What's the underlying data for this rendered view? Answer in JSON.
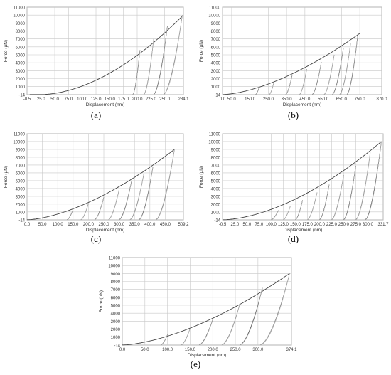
{
  "chart_data": [
    {
      "type": "line",
      "id": "a",
      "label": "(a)",
      "xlabel": "Displacement (nm)",
      "ylabel": "Force (µN)",
      "xlim": [
        -0.5,
        284.1
      ],
      "ylim": [
        -14,
        11000
      ],
      "xticks": [
        "-0.5",
        "25.0",
        "50.0",
        "75.0",
        "100.0",
        "125.0",
        "150.0",
        "175.0",
        "200.0",
        "225.0",
        "250.0",
        "284.1"
      ],
      "yticks": [
        "-14",
        "1000",
        "2000",
        "3000",
        "4000",
        "5000",
        "6000",
        "7000",
        "8000",
        "9000",
        "10000",
        "11000"
      ],
      "grid": true,
      "loading": {
        "name": "loading",
        "x0": 25,
        "xmax": 284,
        "fmax": 10000,
        "exponent": 1.8
      },
      "cycles": [
        {
          "peak_displacement": 205,
          "peak_force": 5600,
          "final_displacement": 192
        },
        {
          "peak_displacement": 230,
          "peak_force": 7000,
          "final_displacement": 212
        },
        {
          "peak_displacement": 255,
          "peak_force": 8600,
          "final_displacement": 230
        },
        {
          "peak_displacement": 282,
          "peak_force": 9950,
          "final_displacement": 248
        }
      ]
    },
    {
      "type": "line",
      "id": "b",
      "label": "(b)",
      "xlabel": "Displacement (nm)",
      "ylabel": "Force (µN)",
      "xlim": [
        0,
        870
      ],
      "ylim": [
        -14,
        11000
      ],
      "xticks": [
        "0.0",
        "50.0",
        "150.0",
        "250.0",
        "350.0",
        "450.0",
        "550.0",
        "650.0",
        "750.0",
        "870.0"
      ],
      "yticks": [
        "-14",
        "1000",
        "2000",
        "3000",
        "4000",
        "5000",
        "6000",
        "7000",
        "8000",
        "9000",
        "10000",
        "11000"
      ],
      "grid": true,
      "loading": {
        "name": "loading",
        "x0": 0,
        "xmax": 750,
        "fmax": 7700,
        "exponent": 1.6
      },
      "cycles": [
        {
          "peak_displacement": 200,
          "peak_force": 900,
          "final_displacement": 180
        },
        {
          "peak_displacement": 280,
          "peak_force": 1500,
          "final_displacement": 255
        },
        {
          "peak_displacement": 380,
          "peak_force": 2400,
          "final_displacement": 345
        },
        {
          "peak_displacement": 460,
          "peak_force": 3200,
          "final_displacement": 420
        },
        {
          "peak_displacement": 540,
          "peak_force": 4100,
          "final_displacement": 490
        },
        {
          "peak_displacement": 610,
          "peak_force": 5000,
          "final_displacement": 555
        },
        {
          "peak_displacement": 660,
          "peak_force": 5800,
          "final_displacement": 600
        },
        {
          "peak_displacement": 700,
          "peak_force": 6500,
          "final_displacement": 640
        },
        {
          "peak_displacement": 740,
          "peak_force": 7700,
          "final_displacement": 680
        }
      ]
    },
    {
      "type": "line",
      "id": "c",
      "label": "(c)",
      "xlabel": "Displacement (nm)",
      "ylabel": "Force (µN)",
      "xlim": [
        0,
        509.2
      ],
      "ylim": [
        -14,
        11000
      ],
      "xticks": [
        "0.0",
        "50.0",
        "100.0",
        "150.0",
        "200.0",
        "250.0",
        "300.0",
        "350.0",
        "400.0",
        "450.0",
        "509.2"
      ],
      "yticks": [
        "-14",
        "1000",
        "2000",
        "3000",
        "4000",
        "5000",
        "6000",
        "7000",
        "8000",
        "9000",
        "10000",
        "11000"
      ],
      "grid": true,
      "loading": {
        "name": "loading",
        "x0": 0,
        "xmax": 480,
        "fmax": 9000,
        "exponent": 1.6
      },
      "cycles": [
        {
          "peak_displacement": 150,
          "peak_force": 1300,
          "final_displacement": 130
        },
        {
          "peak_displacement": 200,
          "peak_force": 2100,
          "final_displacement": 175
        },
        {
          "peak_displacement": 250,
          "peak_force": 2900,
          "final_displacement": 220
        },
        {
          "peak_displacement": 300,
          "peak_force": 3900,
          "final_displacement": 265
        },
        {
          "peak_displacement": 340,
          "peak_force": 4900,
          "final_displacement": 300
        },
        {
          "peak_displacement": 380,
          "peak_force": 5800,
          "final_displacement": 335
        },
        {
          "peak_displacement": 410,
          "peak_force": 6800,
          "final_displacement": 365
        },
        {
          "peak_displacement": 480,
          "peak_force": 9000,
          "final_displacement": 420
        }
      ]
    },
    {
      "type": "line",
      "id": "d",
      "label": "(d)",
      "xlabel": "Displacement (nm)",
      "ylabel": "Force (µN)",
      "xlim": [
        -0.5,
        331.7
      ],
      "ylim": [
        -14,
        11000
      ],
      "xticks": [
        "-0.5",
        "25.0",
        "50.0",
        "75.0",
        "100.0",
        "125.0",
        "150.0",
        "175.0",
        "200.0",
        "225.0",
        "250.0",
        "275.0",
        "300.0",
        "331.7"
      ],
      "yticks": [
        "-14",
        "1000",
        "2000",
        "3000",
        "4000",
        "5000",
        "6000",
        "7000",
        "8000",
        "9000",
        "10000",
        "11000"
      ],
      "grid": true,
      "loading": {
        "name": "loading",
        "x0": 0,
        "xmax": 328,
        "fmax": 10000,
        "exponent": 1.7
      },
      "cycles": [
        {
          "peak_displacement": 115,
          "peak_force": 1200,
          "final_displacement": 100
        },
        {
          "peak_displacement": 140,
          "peak_force": 1800,
          "final_displacement": 125
        },
        {
          "peak_displacement": 165,
          "peak_force": 2500,
          "final_displacement": 150
        },
        {
          "peak_displacement": 195,
          "peak_force": 3500,
          "final_displacement": 175
        },
        {
          "peak_displacement": 220,
          "peak_force": 4500,
          "final_displacement": 200
        },
        {
          "peak_displacement": 250,
          "peak_force": 5700,
          "final_displacement": 225
        },
        {
          "peak_displacement": 275,
          "peak_force": 6900,
          "final_displacement": 250
        },
        {
          "peak_displacement": 305,
          "peak_force": 8600,
          "final_displacement": 275
        },
        {
          "peak_displacement": 328,
          "peak_force": 10000,
          "final_displacement": 295
        }
      ]
    },
    {
      "type": "line",
      "id": "e",
      "label": "(e)",
      "xlabel": "Displacement (nm)",
      "ylabel": "Force (µN)",
      "xlim": [
        0,
        374.1
      ],
      "ylim": [
        -14,
        11000
      ],
      "xticks": [
        "0.0",
        "50.0",
        "100.0",
        "150.0",
        "200.0",
        "250.0",
        "300.0",
        "374.1"
      ],
      "yticks": [
        "-14",
        "1000",
        "2000",
        "3000",
        "4000",
        "5000",
        "6000",
        "7000",
        "8000",
        "9000",
        "10000",
        "11000"
      ],
      "grid": true,
      "loading": {
        "name": "loading",
        "x0": 0,
        "xmax": 370,
        "fmax": 9000,
        "exponent": 1.6
      },
      "cycles": [
        {
          "peak_displacement": 100,
          "peak_force": 1300,
          "final_displacement": 85
        },
        {
          "peak_displacement": 150,
          "peak_force": 2100,
          "final_displacement": 130
        },
        {
          "peak_displacement": 200,
          "peak_force": 3200,
          "final_displacement": 170
        },
        {
          "peak_displacement": 260,
          "peak_force": 5200,
          "final_displacement": 220
        },
        {
          "peak_displacement": 310,
          "peak_force": 7200,
          "final_displacement": 260
        },
        {
          "peak_displacement": 370,
          "peak_force": 9000,
          "final_displacement": 305
        }
      ]
    }
  ]
}
